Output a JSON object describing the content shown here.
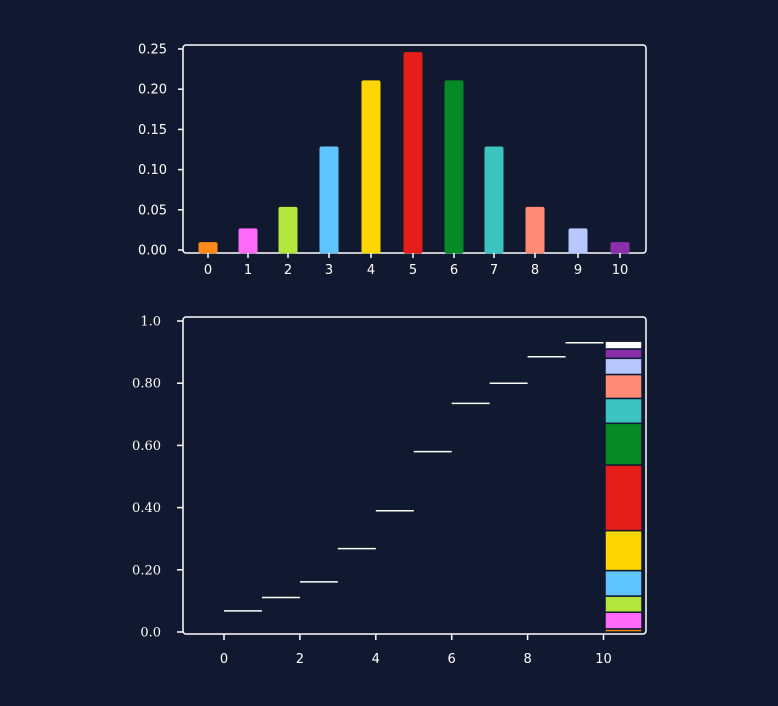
{
  "colors": {
    "background": "#101930",
    "axis": "#ffffff",
    "bar_colors": [
      "#ff8c1a",
      "#ff6bf6",
      "#b2e63c",
      "#5fc4ff",
      "#ffd700",
      "#e61e19",
      "#068a26",
      "#3cc4c0",
      "#ff8b76",
      "#b8c8ff",
      "#8a2ea9"
    ]
  },
  "chart_data": [
    {
      "type": "bar",
      "title": "",
      "xlabel": "",
      "ylabel": "",
      "categories": [
        "0",
        "1",
        "2",
        "3",
        "4",
        "5",
        "6",
        "7",
        "8",
        "9",
        "10"
      ],
      "values": [
        0.0098,
        0.0269,
        0.0537,
        0.1287,
        0.2109,
        0.2461,
        0.2109,
        0.1287,
        0.0537,
        0.0269,
        0.0098
      ],
      "ylim": [
        0,
        0.25
      ],
      "yticks": [
        "0.00",
        "0.05",
        "0.10",
        "0.15",
        "0.20",
        "0.25"
      ],
      "xticks": [
        "0",
        "1",
        "2",
        "3",
        "4",
        "5",
        "6",
        "7",
        "8",
        "9",
        "10"
      ],
      "grid": false
    },
    {
      "type": "line",
      "subtype": "step",
      "title": "",
      "xlabel": "",
      "ylabel": "",
      "steps": [
        {
          "x": [
            0,
            1
          ],
          "y": 0.068
        },
        {
          "x": [
            1,
            2
          ],
          "y": 0.111
        },
        {
          "x": [
            2,
            3
          ],
          "y": 0.161
        },
        {
          "x": [
            3,
            4
          ],
          "y": 0.268
        },
        {
          "x": [
            4,
            5
          ],
          "y": 0.39
        },
        {
          "x": [
            5,
            6
          ],
          "y": 0.58
        },
        {
          "x": [
            6,
            7
          ],
          "y": 0.735
        },
        {
          "x": [
            7,
            8
          ],
          "y": 0.8
        },
        {
          "x": [
            8,
            9
          ],
          "y": 0.885
        },
        {
          "x": [
            9,
            10
          ],
          "y": 0.93
        }
      ],
      "stacked_bar": {
        "x": 10.5,
        "values": [
          0.0098,
          0.0537,
          0.052,
          0.082,
          0.1287,
          0.2109,
          0.134,
          0.08,
          0.077,
          0.052,
          0.03,
          0.025
        ]
      },
      "xlim": [
        -1,
        11
      ],
      "ylim": [
        0,
        1
      ],
      "xticks": [
        "0",
        "2",
        "4",
        "6",
        "8",
        "10"
      ],
      "yticks": [
        "0.0",
        "0.20",
        "0.40",
        "0.60",
        "0.80",
        "1.0"
      ],
      "grid": false
    }
  ]
}
